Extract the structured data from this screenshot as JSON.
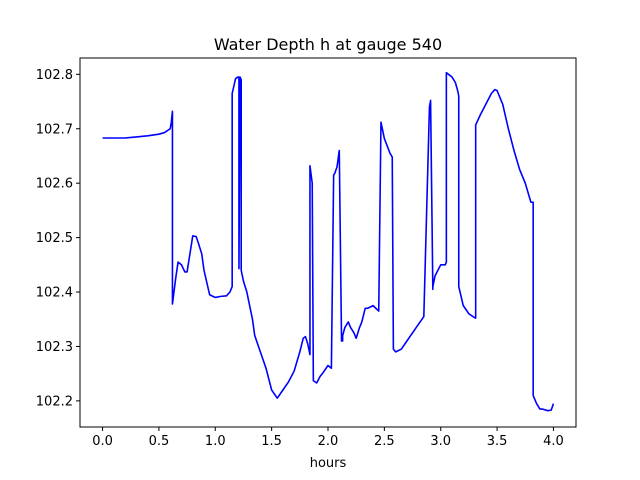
{
  "chart_data": {
    "type": "line",
    "title": "Water Depth h at gauge 540",
    "xlabel": "hours",
    "ylabel": "",
    "xlim": [
      -0.2,
      4.2
    ],
    "ylim": [
      102.152,
      102.83
    ],
    "x_ticks": [
      0.0,
      0.5,
      1.0,
      1.5,
      2.0,
      2.5,
      3.0,
      3.5,
      4.0
    ],
    "x_tick_labels": [
      "0.0",
      "0.5",
      "1.0",
      "1.5",
      "2.0",
      "2.5",
      "3.0",
      "3.5",
      "4.0"
    ],
    "y_ticks": [
      102.2,
      102.3,
      102.4,
      102.5,
      102.6,
      102.7,
      102.8
    ],
    "y_tick_labels": [
      "102.2",
      "102.3",
      "102.4",
      "102.5",
      "102.6",
      "102.7",
      "102.8"
    ],
    "grid": false,
    "series": [
      {
        "color": "#0000ff",
        "x": [
          0.0,
          0.2,
          0.3,
          0.4,
          0.5,
          0.55,
          0.6,
          0.61,
          0.62,
          0.62,
          0.65,
          0.67,
          0.7,
          0.73,
          0.75,
          0.8,
          0.83,
          0.85,
          0.88,
          0.9,
          0.95,
          1.0,
          1.05,
          1.1,
          1.13,
          1.15,
          1.15,
          1.18,
          1.2,
          1.21,
          1.21,
          1.22,
          1.23,
          1.23,
          1.25,
          1.28,
          1.3,
          1.33,
          1.35,
          1.4,
          1.45,
          1.5,
          1.55,
          1.6,
          1.65,
          1.7,
          1.75,
          1.78,
          1.8,
          1.82,
          1.84,
          1.84,
          1.86,
          1.87,
          1.9,
          1.93,
          1.95,
          2.0,
          2.03,
          2.05,
          2.06,
          2.06,
          2.08,
          2.1,
          2.12,
          2.13,
          2.13,
          2.15,
          2.18,
          2.2,
          2.23,
          2.25,
          2.28,
          2.3,
          2.33,
          2.35,
          2.4,
          2.45,
          2.47,
          2.47,
          2.5,
          2.55,
          2.57,
          2.58,
          2.6,
          2.65,
          2.7,
          2.75,
          2.8,
          2.85,
          2.9,
          2.91,
          2.91,
          2.93,
          2.93,
          2.95,
          3.0,
          3.04,
          3.05,
          3.05,
          3.1,
          3.13,
          3.15,
          3.16,
          3.16,
          3.2,
          3.25,
          3.3,
          3.31,
          3.31,
          3.35,
          3.4,
          3.45,
          3.48,
          3.5,
          3.55,
          3.6,
          3.65,
          3.7,
          3.75,
          3.8,
          3.82,
          3.82,
          3.85,
          3.88,
          3.9,
          3.95,
          3.98,
          4.0
        ],
        "y": [
          102.683,
          102.683,
          102.685,
          102.687,
          102.69,
          102.693,
          102.7,
          102.712,
          102.732,
          102.378,
          102.427,
          102.455,
          102.45,
          102.437,
          102.437,
          102.503,
          102.502,
          102.49,
          102.47,
          102.44,
          102.395,
          102.39,
          102.392,
          102.393,
          102.4,
          102.41,
          102.765,
          102.792,
          102.795,
          102.795,
          102.443,
          102.795,
          102.79,
          102.44,
          102.42,
          102.4,
          102.38,
          102.35,
          102.32,
          102.29,
          102.26,
          102.22,
          102.205,
          102.22,
          102.235,
          102.255,
          102.29,
          102.315,
          102.318,
          102.305,
          102.285,
          102.632,
          102.6,
          102.237,
          102.233,
          102.245,
          102.25,
          102.265,
          102.26,
          102.615,
          102.618,
          102.618,
          102.63,
          102.66,
          102.31,
          102.31,
          102.32,
          102.335,
          102.345,
          102.335,
          102.325,
          102.315,
          102.335,
          102.345,
          102.37,
          102.37,
          102.375,
          102.365,
          102.712,
          102.712,
          102.682,
          102.655,
          102.648,
          102.295,
          102.29,
          102.295,
          102.31,
          102.325,
          102.34,
          102.355,
          102.74,
          102.752,
          102.752,
          102.405,
          102.41,
          102.43,
          102.45,
          102.45,
          102.455,
          102.803,
          102.795,
          102.785,
          102.77,
          102.76,
          102.41,
          102.375,
          102.36,
          102.353,
          102.352,
          102.707,
          102.725,
          102.745,
          102.765,
          102.772,
          102.77,
          102.745,
          102.7,
          102.66,
          102.625,
          102.6,
          102.565,
          102.565,
          102.21,
          102.195,
          102.185,
          102.185,
          102.182,
          102.183,
          102.195
        ]
      }
    ]
  }
}
